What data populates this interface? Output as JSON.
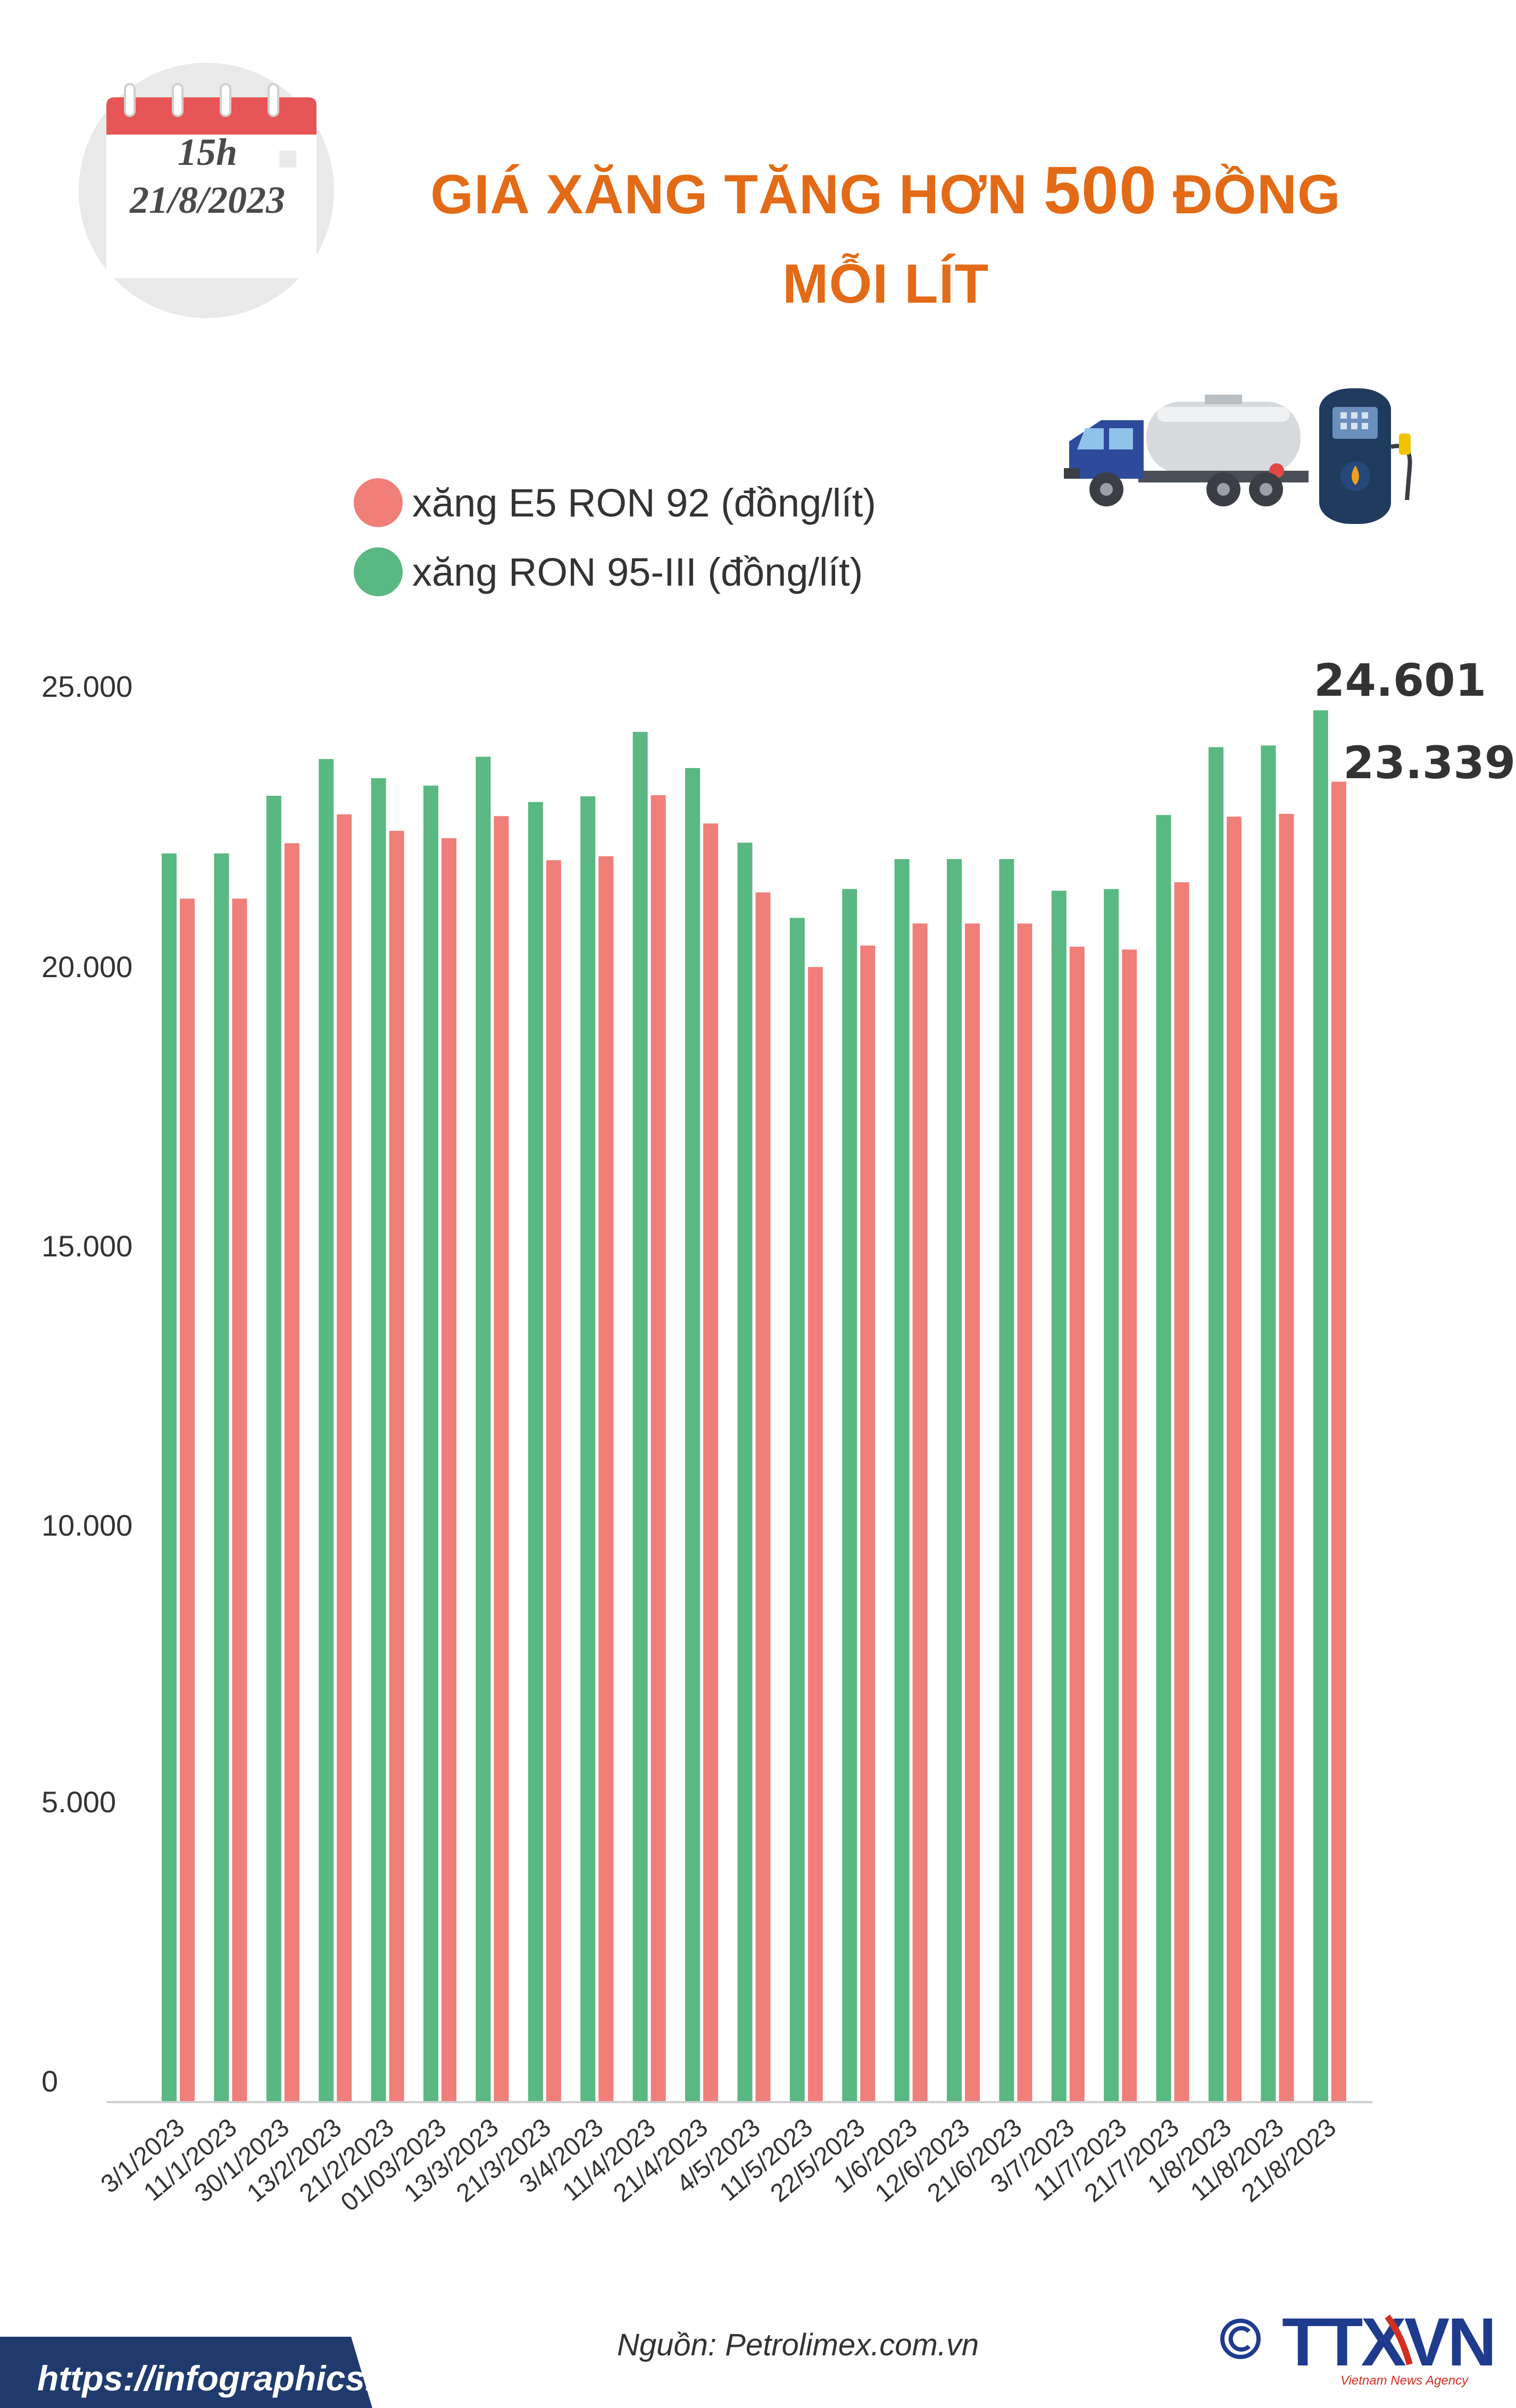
{
  "header": {
    "time": "15h",
    "date": "21/8/2023",
    "title_part1": "GIÁ XĂNG TĂNG HƠN ",
    "title_number": "500",
    "title_part2": " ĐỒNG",
    "title_line2": "MỖI LÍT"
  },
  "colors": {
    "title": "#e36a16",
    "e5": "#f07e79",
    "ron95": "#5ab882",
    "calendar_red": "#e65656",
    "url_bar": "#1f3b6e",
    "logo_blue": "#1f3b8e",
    "logo_red": "#d62d20"
  },
  "icons": [
    "calendar-icon",
    "fuel-truck-icon",
    "fuel-pump-icon",
    "copyright-icon"
  ],
  "chart_data": {
    "type": "bar",
    "title": "GIÁ XĂNG TĂNG HƠN 500 ĐỒNG MỖI LÍT",
    "xlabel": "",
    "ylabel": "",
    "ylim": [
      0,
      25000
    ],
    "yticks": [
      "0",
      "5.000",
      "10.000",
      "15.000",
      "20.000",
      "25.000"
    ],
    "grid": false,
    "legend_position": "top-left",
    "categories": [
      "3/1/2023",
      "11/1/2023",
      "30/1/2023",
      "13/2/2023",
      "21/2/2023",
      "01/03/2023",
      "13/3/2023",
      "21/3/2023",
      "3/4/2023",
      "11/4/2023",
      "21/4/2023",
      "4/5/2023",
      "11/5/2023",
      "22/5/2023",
      "1/6/2023",
      "12/6/2023",
      "21/6/2023",
      "3/7/2023",
      "11/7/2023",
      "21/7/2023",
      "1/8/2023",
      "11/8/2023",
      "21/8/2023"
    ],
    "series": [
      {
        "name": "xăng RON 95-III (đồng/lít)",
        "values": [
          22070,
          22070,
          23090,
          23740,
          23400,
          23270,
          23780,
          22980,
          23080,
          24220,
          23580,
          22260,
          20930,
          21440,
          21970,
          21970,
          21970,
          21410,
          21440,
          22750,
          23950,
          23980,
          24601
        ]
      },
      {
        "name": "xăng E5 RON 92 (đồng/lít)",
        "values": [
          21270,
          21270,
          22250,
          22760,
          22470,
          22340,
          22730,
          21950,
          22020,
          23100,
          22600,
          21380,
          20060,
          20440,
          20830,
          20830,
          20830,
          20420,
          20370,
          21560,
          22720,
          22770,
          23339
        ]
      }
    ],
    "annotations": [
      "24.601",
      "23.339"
    ]
  },
  "footer": {
    "source": "Nguồn: Petrolimex.com.vn",
    "url": "https://infographics.vn",
    "logo_text": "TTXVN",
    "logo_sub": "Vietnam News Agency"
  }
}
